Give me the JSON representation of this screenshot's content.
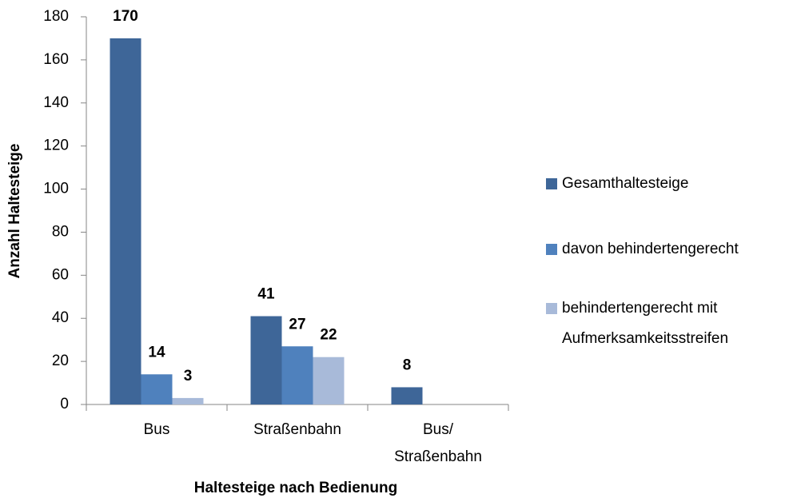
{
  "chart_data": {
    "type": "bar",
    "x_label": "Haltesteige nach Bedienung",
    "y_label": "Anzahl Haltesteige",
    "categories": [
      "Bus",
      "Straßenbahn",
      "Bus/\nStraßenbahn"
    ],
    "series": [
      {
        "name": "Gesamthaltesteige",
        "color": "#3e6698",
        "values": [
          170,
          41,
          8
        ]
      },
      {
        "name": "davon behindertengerecht",
        "color": "#4f81bd",
        "values": [
          14,
          27,
          null
        ]
      },
      {
        "name": "behindertengerecht mit\nAufmerksamkeitsstreifen",
        "color": "#a8bad9",
        "values": [
          3,
          22,
          null
        ]
      }
    ],
    "ylim": [
      0,
      180
    ],
    "yticks": [
      0,
      20,
      40,
      60,
      80,
      100,
      120,
      140,
      160,
      180
    ],
    "legend": "right"
  }
}
